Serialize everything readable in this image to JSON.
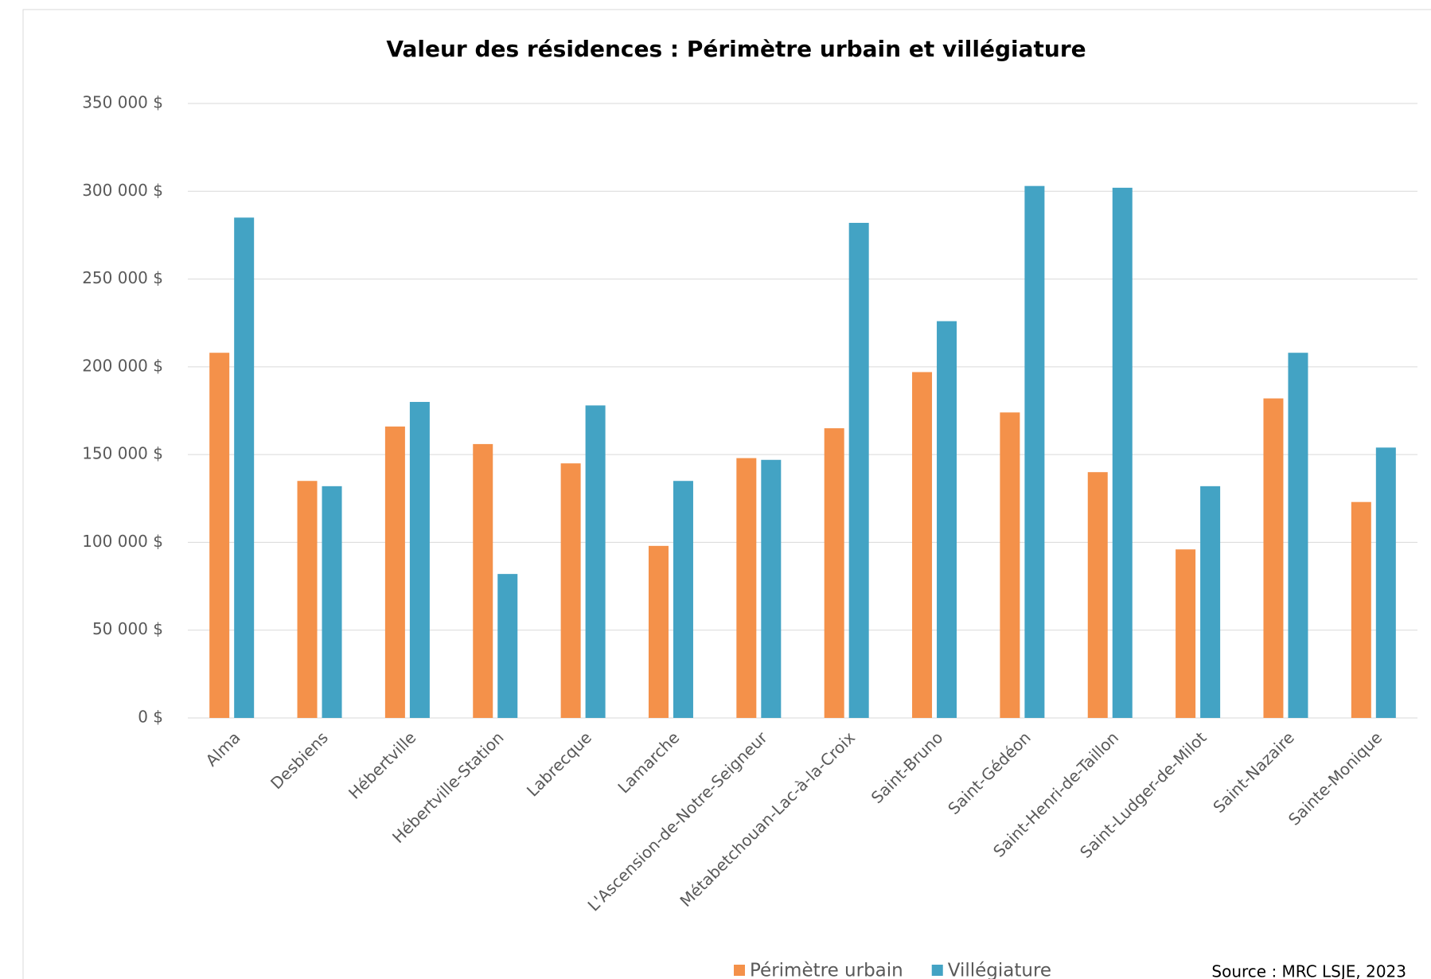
{
  "chart_data": {
    "type": "bar",
    "title": "Valeur des résidences : Périmètre urbain et villégiature",
    "categories": [
      "Alma",
      "Desbiens",
      "Hébertville",
      "Hébertville-Station",
      "Labrecque",
      "Lamarche",
      "L'Ascension-de-Notre-Seigneur",
      "Métabetchouan-Lac-à-la-Croix",
      "Saint-Bruno",
      "Saint-Gédéon",
      "Saint-Henri-de-Taillon",
      "Saint-Ludger-de-Milot",
      "Saint-Nazaire",
      "Sainte-Monique"
    ],
    "series": [
      {
        "name": "Périmètre urbain",
        "color": "#f4914a",
        "values": [
          208000,
          135000,
          166000,
          156000,
          145000,
          98000,
          148000,
          165000,
          197000,
          174000,
          140000,
          96000,
          182000,
          123000
        ]
      },
      {
        "name": "Villégiature",
        "color": "#43a3c4",
        "values": [
          285000,
          132000,
          180000,
          82000,
          178000,
          135000,
          147000,
          282000,
          226000,
          303000,
          302000,
          132000,
          208000,
          154000
        ]
      }
    ],
    "ylim": [
      0,
      350000
    ],
    "yticks": [
      {
        "value": 0,
        "label": "0 $"
      },
      {
        "value": 50000,
        "label": "50 000 $"
      },
      {
        "value": 100000,
        "label": "100 000 $"
      },
      {
        "value": 150000,
        "label": "150 000 $"
      },
      {
        "value": 200000,
        "label": "200 000 $"
      },
      {
        "value": 250000,
        "label": "250 000 $"
      },
      {
        "value": 300000,
        "label": "300 000 $"
      },
      {
        "value": 350000,
        "label": "350 000 $"
      }
    ],
    "grid": true,
    "legend": "bottom",
    "source": "Source : MRC LSJE, 2023"
  }
}
